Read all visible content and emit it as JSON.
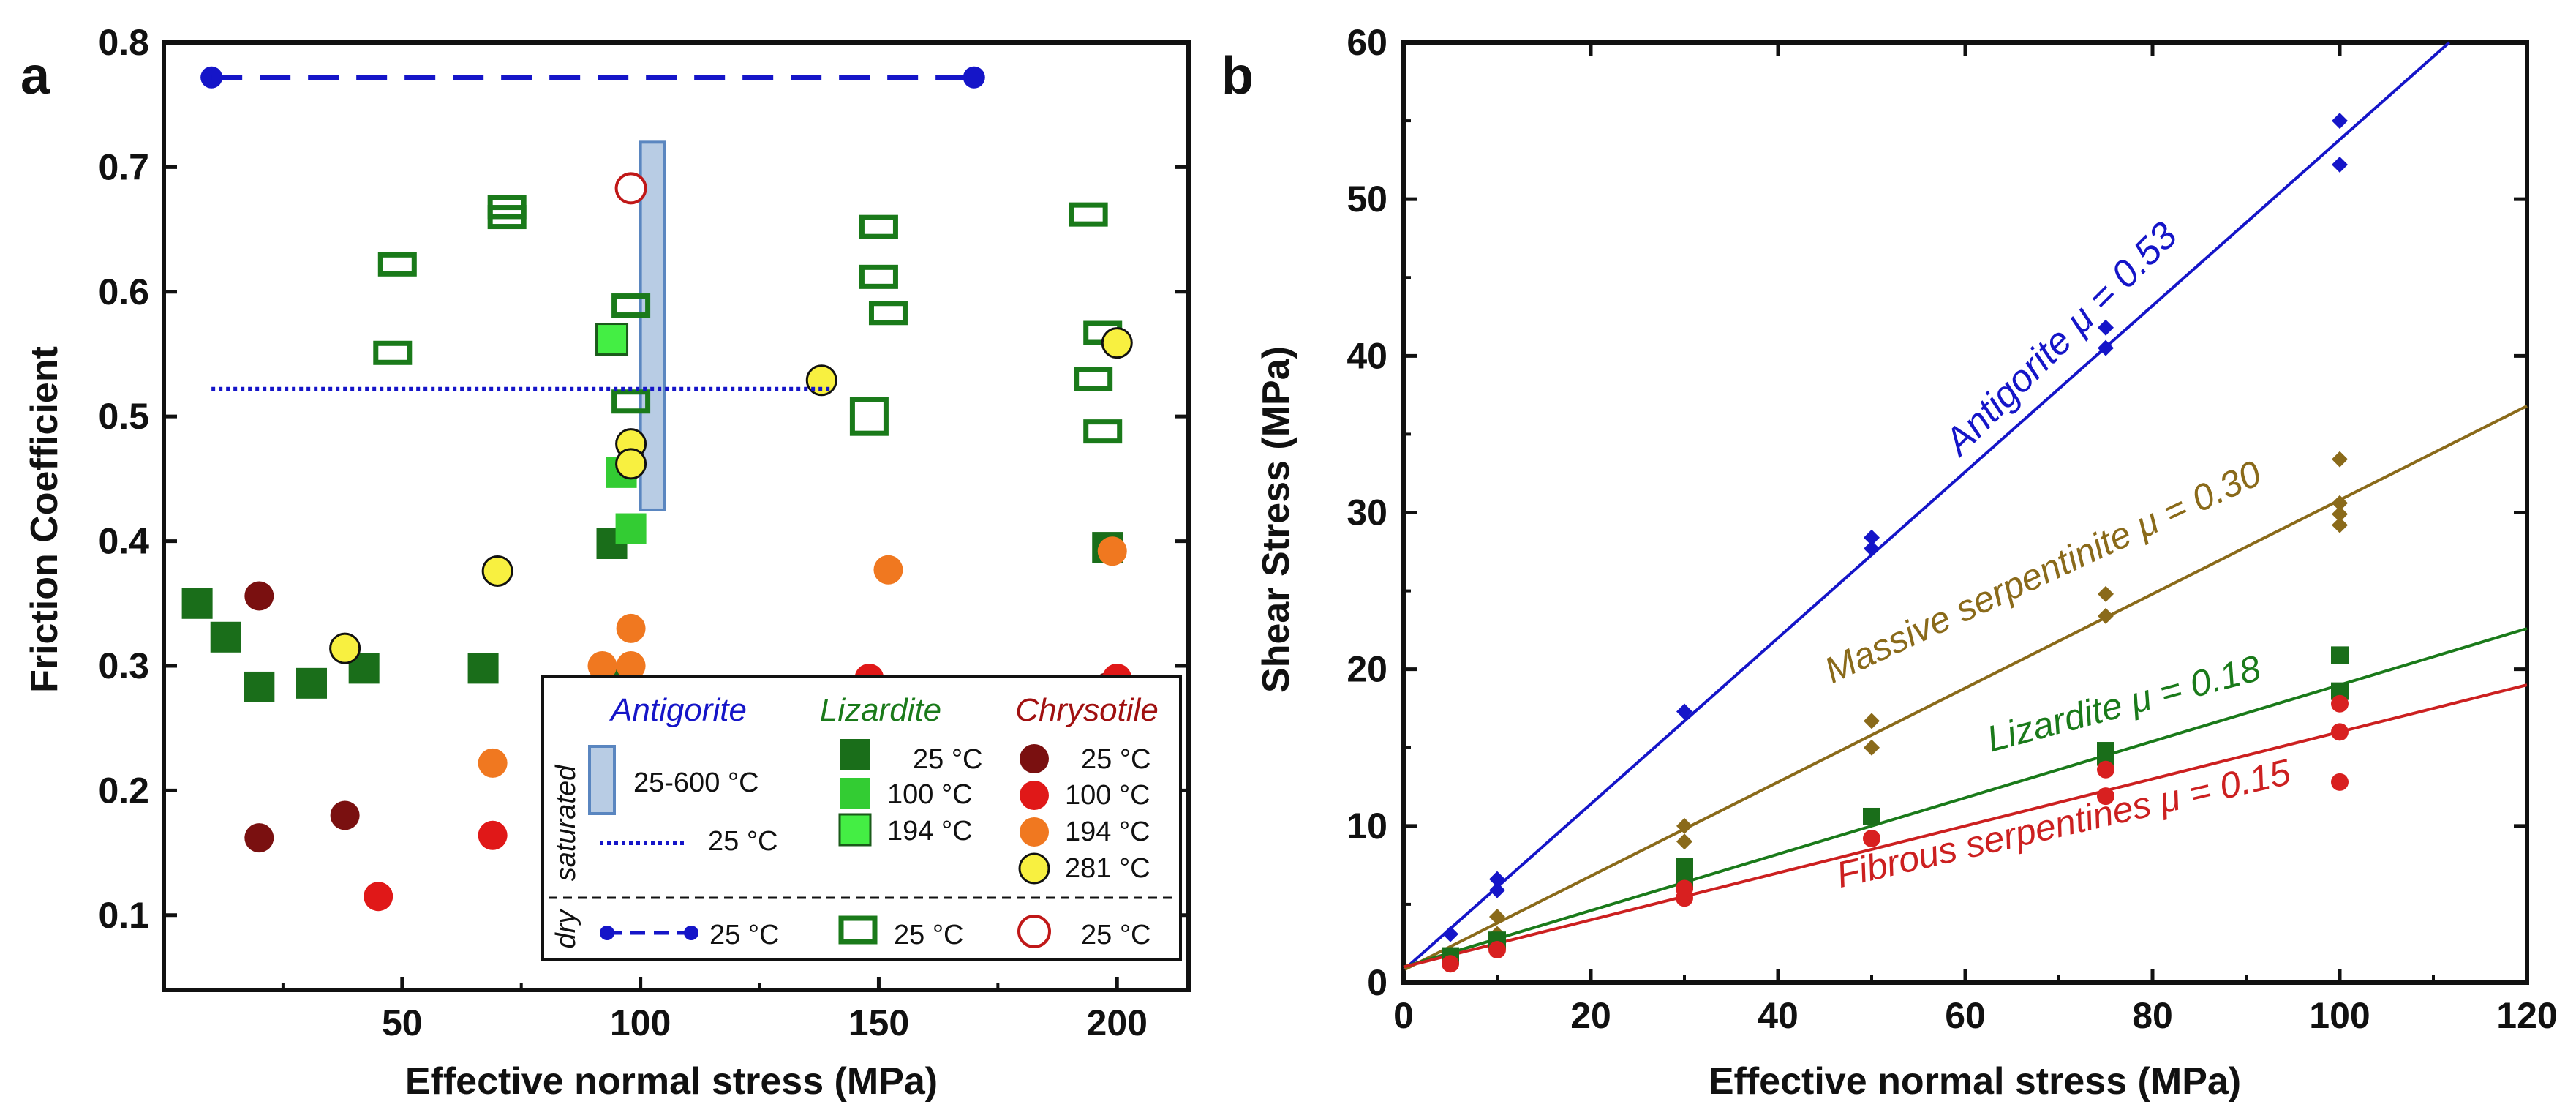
{
  "colors": {
    "antigorite": "#1515c8",
    "lizardite": "#1a7a1a",
    "lizardite_100": "#33cc33",
    "lizardite_194": "#44ee44",
    "chrysotile_25": "#7a1010",
    "chrysotile_100": "#e01818",
    "chrysotile_194": "#f07820",
    "chrysotile_281": "#f8f040",
    "massive": "#8a6a1a",
    "fibrous": "#cc2020",
    "band_fill": "#b8cce4",
    "band_stroke": "#5a86c0"
  },
  "chart_data": [
    {
      "panel_label": "a",
      "type": "scatter",
      "xlabel": "Effective normal stress (MPa)",
      "ylabel": "Friction Coefficient",
      "xlim": [
        0,
        215
      ],
      "ylim": [
        0.04,
        0.8
      ],
      "xticks": [
        "50",
        "100",
        "150",
        "200"
      ],
      "yticks": [
        "0.1",
        "0.2",
        "0.3",
        "0.4",
        "0.5",
        "0.6",
        "0.7",
        "0.8"
      ],
      "series": [
        {
          "name": "Antigorite dry 25 °C",
          "points": [
            [
              10,
              0.772
            ],
            [
              170,
              0.772
            ]
          ]
        },
        {
          "name": "Antigorite saturated 25 °C",
          "x": [
            10,
            140
          ],
          "value": 0.522
        },
        {
          "name": "Antigorite saturated 25-600 °C",
          "x": [
            100,
            105
          ],
          "range": [
            0.425,
            0.72
          ]
        },
        {
          "name": "Lizardite saturated 25 °C",
          "points": [
            [
              7,
              0.35
            ],
            [
              13,
              0.323
            ],
            [
              20,
              0.283
            ],
            [
              31,
              0.286
            ],
            [
              42,
              0.298
            ],
            [
              67,
              0.298
            ],
            [
              94,
              0.398
            ],
            [
              95,
              0.285
            ],
            [
              198,
              0.395
            ]
          ]
        },
        {
          "name": "Lizardite saturated 100 °C",
          "points": [
            [
              96,
              0.455
            ],
            [
              98,
              0.41
            ]
          ]
        },
        {
          "name": "Lizardite saturated 194 °C",
          "points": [
            [
              94,
              0.562
            ]
          ]
        },
        {
          "name": "Lizardite dry 25 °C",
          "points": [
            [
              49,
              0.622
            ],
            [
              48,
              0.551
            ],
            [
              72,
              0.668
            ],
            [
              72,
              0.66
            ],
            [
              98,
              0.589
            ],
            [
              98,
              0.512
            ],
            [
              150,
              0.652
            ],
            [
              150,
              0.612
            ],
            [
              152,
              0.583
            ],
            [
              148,
              0.5
            ],
            [
              194,
              0.662
            ],
            [
              197,
              0.567
            ],
            [
              195,
              0.53
            ],
            [
              197,
              0.488
            ]
          ]
        },
        {
          "name": "Chrysotile saturated 25 °C",
          "points": [
            [
              20,
              0.356
            ],
            [
              20,
              0.162
            ],
            [
              38,
              0.18
            ],
            [
              198,
              0.283
            ]
          ]
        },
        {
          "name": "Chrysotile saturated 100 °C",
          "points": [
            [
              45,
              0.115
            ],
            [
              69,
              0.164
            ],
            [
              148,
              0.29
            ],
            [
              200,
              0.29
            ]
          ]
        },
        {
          "name": "Chrysotile saturated 194 °C",
          "points": [
            [
              69,
              0.222
            ],
            [
              92,
              0.3
            ],
            [
              98,
              0.3
            ],
            [
              98,
              0.33
            ],
            [
              152,
              0.377
            ],
            [
              199,
              0.392
            ]
          ]
        },
        {
          "name": "Chrysotile saturated 281 °C",
          "points": [
            [
              38,
              0.314
            ],
            [
              70,
              0.376
            ],
            [
              98,
              0.478
            ],
            [
              98,
              0.462
            ],
            [
              138,
              0.529
            ],
            [
              200,
              0.559
            ]
          ]
        },
        {
          "name": "Chrysotile dry 25 °C",
          "points": [
            [
              98,
              0.683
            ]
          ]
        }
      ],
      "legend": {
        "headers": [
          "Antigorite",
          "Lizardite",
          "Chrysotile"
        ],
        "side_saturated": "saturated",
        "side_dry": "dry",
        "items": {
          "band": "25-600 °C",
          "dotted": "25 °C",
          "liz25": "25 °C",
          "liz100": "100 °C",
          "liz194": "194 °C",
          "chr25": "25 °C",
          "chr100": "100 °C",
          "chr194": "194 °C",
          "chr281": "281 °C",
          "dry_ant": "25 °C",
          "dry_liz": "25 °C",
          "dry_chr": "25 °C"
        }
      }
    },
    {
      "panel_label": "b",
      "type": "scatter",
      "xlabel": "Effective normal stress (MPa)",
      "ylabel": "Shear Stress (MPa)",
      "xlim": [
        0,
        120
      ],
      "ylim": [
        0,
        60
      ],
      "xticks": [
        "0",
        "20",
        "40",
        "60",
        "80",
        "100",
        "120"
      ],
      "yticks": [
        "0",
        "10",
        "20",
        "30",
        "40",
        "50",
        "60"
      ],
      "series": [
        {
          "name": "Antigorite",
          "label": "Antigorite μ = 0.53",
          "fit": {
            "slope": 0.53,
            "intercept": 0.8
          },
          "points": [
            [
              5,
              3.1
            ],
            [
              10,
              6.6
            ],
            [
              10,
              5.9
            ],
            [
              30,
              17.3
            ],
            [
              50,
              28.4
            ],
            [
              50,
              27.7
            ],
            [
              75,
              41.8
            ],
            [
              75,
              40.5
            ],
            [
              100,
              55
            ],
            [
              100,
              52.2
            ]
          ]
        },
        {
          "name": "Massive serpentinite",
          "label": "Massive serpentinite μ = 0.30",
          "fit": {
            "slope": 0.3,
            "intercept": 0.8
          },
          "points": [
            [
              5,
              1.9
            ],
            [
              10,
              4.2
            ],
            [
              10,
              3.1
            ],
            [
              30,
              10
            ],
            [
              30,
              9
            ],
            [
              50,
              16.7
            ],
            [
              50,
              15
            ],
            [
              75,
              24.8
            ],
            [
              75,
              23.4
            ],
            [
              100,
              33.4
            ],
            [
              100,
              30.6
            ],
            [
              100,
              29.9
            ],
            [
              100,
              29.2
            ]
          ]
        },
        {
          "name": "Lizardite",
          "label": "Lizardite μ = 0.18",
          "fit": {
            "slope": 0.18,
            "intercept": 1.0
          },
          "points": [
            [
              5,
              1.7
            ],
            [
              10,
              2.7
            ],
            [
              30,
              7.4
            ],
            [
              30,
              6.5
            ],
            [
              50,
              10.6
            ],
            [
              75,
              14.8
            ],
            [
              75,
              14.4
            ],
            [
              100,
              20.9
            ],
            [
              100,
              18.6
            ]
          ]
        },
        {
          "name": "Fibrous serpentines",
          "label": "Fibrous serpentines μ = 0.15",
          "fit": {
            "slope": 0.15,
            "intercept": 1.0
          },
          "points": [
            [
              5,
              1.2
            ],
            [
              10,
              2.1
            ],
            [
              30,
              5.4
            ],
            [
              30,
              6
            ],
            [
              50,
              9.2
            ],
            [
              75,
              13.6
            ],
            [
              75,
              11.9
            ],
            [
              100,
              17.8
            ],
            [
              100,
              16
            ],
            [
              100,
              12.8
            ]
          ]
        }
      ]
    }
  ]
}
